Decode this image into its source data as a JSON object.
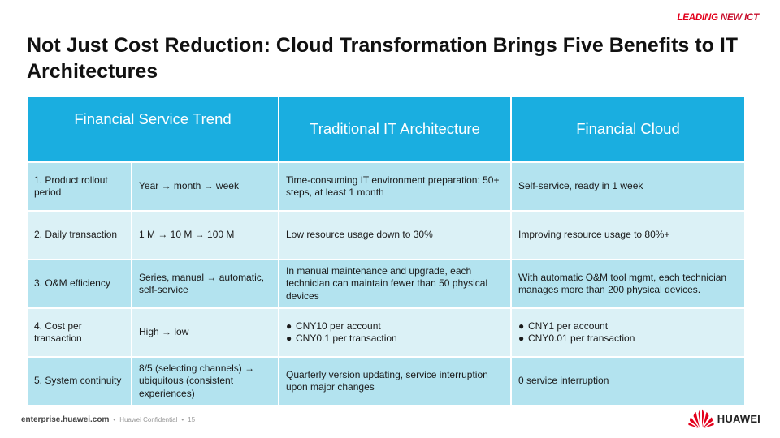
{
  "brand_top": {
    "part1": "LEADING",
    "part2": " NEW ICT"
  },
  "title": "Not Just Cost Reduction: Cloud Transformation Brings Five Benefits to IT Architectures",
  "table": {
    "headers": {
      "trend": "Financial Service Trend",
      "traditional": "Traditional IT Architecture",
      "cloud": "Financial Cloud"
    },
    "rows": [
      {
        "label": "1. Product rollout period",
        "trend": "Year → month → week",
        "traditional": "Time-consuming IT environment preparation: 50+ steps, at least 1 month",
        "cloud": "Self-service, ready in 1 week"
      },
      {
        "label": "2. Daily transaction",
        "trend": "1 M → 10 M → 100 M",
        "traditional": "Low resource usage down to 30%",
        "cloud": "Improving resource usage to 80%+"
      },
      {
        "label": "3. O&M efficiency",
        "trend": "Series, manual → automatic, self-service",
        "traditional": "In manual maintenance and upgrade, each technician can maintain fewer than 50 physical devices",
        "cloud": "With automatic O&M tool mgmt, each technician manages more than 200 physical devices."
      },
      {
        "label": "4. Cost per transaction",
        "trend": "High → low",
        "traditional_items": [
          "CNY10 per account",
          "CNY0.1 per transaction"
        ],
        "cloud_items": [
          "CNY1 per account",
          "CNY0.01 per transaction"
        ]
      },
      {
        "label": "5. System continuity",
        "trend": "8/5 (selecting channels) → ubiquitous (consistent experiences)",
        "traditional": "Quarterly version updating, service interruption upon major changes",
        "cloud": "0 service interruption"
      }
    ]
  },
  "footer": {
    "site": "enterprise.huawei.com",
    "confidential": "Huawei Confidential",
    "page": "15"
  },
  "logo": {
    "text": "HUAWEI",
    "color": "#e3001b"
  },
  "icons": {
    "bullet": "●",
    "separator": "•"
  }
}
